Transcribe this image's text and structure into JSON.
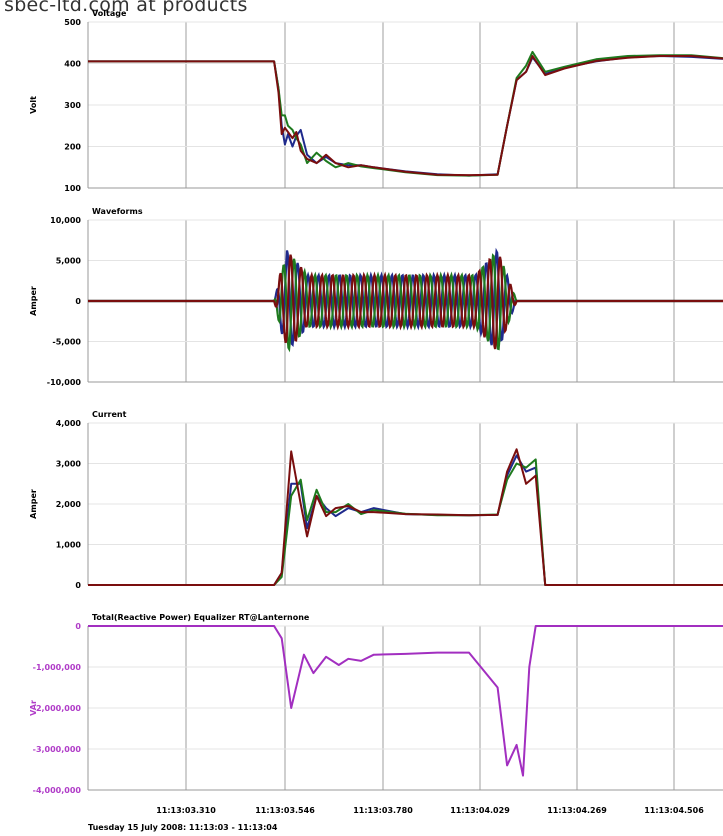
{
  "watermark": "sbec-ltd.com  at  products",
  "footer": "Tuesday 15 July 2008: 11:13:03 - 11:13:04",
  "x_ticks": [
    "11:13:03.310",
    "11:13:03.546",
    "11:13:03.780",
    "11:13:04.029",
    "11:13:04.269",
    "11:13:04.506"
  ],
  "chart_data": [
    {
      "type": "line",
      "title": "Voltage",
      "ylabel": "Volt",
      "ylabel_color": "#000000",
      "ylim": [
        100,
        500
      ],
      "yticks": [
        100,
        200,
        300,
        400,
        500
      ],
      "ytick_labels": [
        "100",
        "200",
        "300",
        "400",
        "500"
      ],
      "xlim": [
        0,
        1
      ],
      "grid": true,
      "series": [
        {
          "color": "#1f2a8c",
          "x": [
            0,
            0.293,
            0.3,
            0.305,
            0.31,
            0.315,
            0.322,
            0.328,
            0.335,
            0.345,
            0.36,
            0.375,
            0.39,
            0.41,
            0.43,
            0.45,
            0.5,
            0.55,
            0.6,
            0.645,
            0.66,
            0.675,
            0.69,
            0.7,
            0.72,
            0.75,
            0.8,
            0.85,
            0.9,
            0.95,
            1.0
          ],
          "y": [
            405,
            405,
            340,
            250,
            205,
            230,
            200,
            225,
            240,
            180,
            160,
            175,
            160,
            155,
            155,
            150,
            140,
            133,
            130,
            133,
            250,
            360,
            380,
            415,
            375,
            390,
            405,
            415,
            418,
            416,
            411
          ]
        },
        {
          "color": "#1e7a1e",
          "x": [
            0,
            0.293,
            0.3,
            0.305,
            0.31,
            0.315,
            0.322,
            0.328,
            0.335,
            0.345,
            0.36,
            0.375,
            0.39,
            0.41,
            0.43,
            0.45,
            0.5,
            0.55,
            0.6,
            0.645,
            0.66,
            0.675,
            0.69,
            0.7,
            0.72,
            0.75,
            0.8,
            0.85,
            0.9,
            0.95,
            1.0
          ],
          "y": [
            405,
            405,
            340,
            275,
            275,
            250,
            240,
            220,
            205,
            160,
            185,
            165,
            150,
            160,
            152,
            148,
            138,
            131,
            130,
            132,
            250,
            365,
            395,
            428,
            380,
            392,
            410,
            418,
            420,
            420,
            413
          ]
        },
        {
          "color": "#7a0e0e",
          "x": [
            0,
            0.293,
            0.3,
            0.305,
            0.31,
            0.315,
            0.322,
            0.328,
            0.335,
            0.345,
            0.36,
            0.375,
            0.39,
            0.41,
            0.43,
            0.45,
            0.5,
            0.55,
            0.6,
            0.645,
            0.66,
            0.675,
            0.69,
            0.7,
            0.72,
            0.75,
            0.8,
            0.85,
            0.9,
            0.95,
            1.0
          ],
          "y": [
            405,
            405,
            330,
            230,
            245,
            235,
            220,
            235,
            190,
            170,
            160,
            180,
            160,
            150,
            155,
            150,
            139,
            132,
            131,
            132,
            250,
            360,
            380,
            418,
            372,
            388,
            406,
            414,
            418,
            418,
            412
          ]
        }
      ]
    },
    {
      "type": "line",
      "title": "Waveforms",
      "ylabel": "Amper",
      "ylabel_color": "#000000",
      "ylim": [
        -10000,
        10000
      ],
      "yticks": [
        -10000,
        -5000,
        0,
        5000,
        10000
      ],
      "ytick_labels": [
        "-10,000",
        "-5,000",
        "0",
        "5,000",
        "10,000"
      ],
      "xlim": [
        0,
        1
      ],
      "grid": true,
      "waveform": {
        "start": 0.293,
        "end": 0.645,
        "decay_end": 0.72,
        "cycle": 0.0165,
        "amplitude_mid": 3200,
        "amplitude_edge": 6300
      },
      "series": [
        {
          "color": "#1f2a8c",
          "phase": 0.0
        },
        {
          "color": "#1e7a1e",
          "phase": 2.094
        },
        {
          "color": "#7a0e0e",
          "phase": 4.189
        }
      ]
    },
    {
      "type": "line",
      "title": "Current",
      "ylabel": "Amper",
      "ylabel_color": "#000000",
      "ylim": [
        0,
        4000
      ],
      "yticks": [
        0,
        1000,
        2000,
        3000,
        4000
      ],
      "ytick_labels": [
        "0",
        "1,000",
        "2,000",
        "3,000",
        "4,000"
      ],
      "xlim": [
        0,
        1
      ],
      "grid": true,
      "series": [
        {
          "color": "#1f2a8c",
          "x": [
            0,
            0.293,
            0.305,
            0.32,
            0.335,
            0.345,
            0.36,
            0.375,
            0.39,
            0.41,
            0.43,
            0.45,
            0.5,
            0.55,
            0.6,
            0.645,
            0.66,
            0.675,
            0.69,
            0.705,
            0.72,
            0.73,
            1.0
          ],
          "y": [
            0,
            0,
            300,
            2500,
            2500,
            1400,
            2200,
            1900,
            1700,
            1900,
            1800,
            1900,
            1750,
            1730,
            1720,
            1730,
            2700,
            3200,
            2800,
            2900,
            0,
            0,
            0
          ]
        },
        {
          "color": "#1e7a1e",
          "x": [
            0,
            0.293,
            0.305,
            0.32,
            0.335,
            0.345,
            0.36,
            0.375,
            0.39,
            0.41,
            0.43,
            0.45,
            0.5,
            0.55,
            0.6,
            0.645,
            0.66,
            0.675,
            0.69,
            0.705,
            0.72,
            0.73,
            1.0
          ],
          "y": [
            0,
            0,
            200,
            2200,
            2600,
            1600,
            2350,
            1800,
            1800,
            2000,
            1750,
            1850,
            1760,
            1720,
            1720,
            1740,
            2600,
            3000,
            2900,
            3100,
            0,
            0,
            0
          ]
        },
        {
          "color": "#7a0e0e",
          "x": [
            0,
            0.293,
            0.305,
            0.32,
            0.335,
            0.345,
            0.36,
            0.375,
            0.39,
            0.41,
            0.43,
            0.45,
            0.5,
            0.55,
            0.6,
            0.645,
            0.66,
            0.675,
            0.69,
            0.705,
            0.72,
            0.73,
            1.0
          ],
          "y": [
            0,
            0,
            300,
            3300,
            2000,
            1200,
            2200,
            1700,
            1900,
            1950,
            1800,
            1800,
            1750,
            1740,
            1720,
            1730,
            2800,
            3350,
            2500,
            2700,
            0,
            0,
            0
          ]
        }
      ]
    },
    {
      "type": "line",
      "title": "Total(Reactive Power) Equalizer RT@Lanternone",
      "ylabel": "VAr",
      "ylabel_color": "#b03cc8",
      "ylim": [
        -4000000,
        0
      ],
      "yticks": [
        -4000000,
        -3000000,
        -2000000,
        -1000000,
        0
      ],
      "ytick_labels": [
        "-4,000,000",
        "-3,000,000",
        "-2,000,000",
        "-1,000,000",
        "0"
      ],
      "xlim": [
        0,
        1
      ],
      "grid": true,
      "series": [
        {
          "color": "#a22fc0",
          "x": [
            0,
            0.293,
            0.305,
            0.32,
            0.34,
            0.355,
            0.375,
            0.395,
            0.41,
            0.43,
            0.45,
            0.5,
            0.55,
            0.6,
            0.645,
            0.66,
            0.675,
            0.685,
            0.695,
            0.705,
            0.715,
            1.0
          ],
          "y": [
            0,
            0,
            -300000,
            -2000000,
            -700000,
            -1150000,
            -750000,
            -950000,
            -800000,
            -850000,
            -700000,
            -680000,
            -650000,
            -650000,
            -1500000,
            -3400000,
            -2900000,
            -3650000,
            -1000000,
            0,
            0,
            0
          ]
        }
      ]
    }
  ]
}
